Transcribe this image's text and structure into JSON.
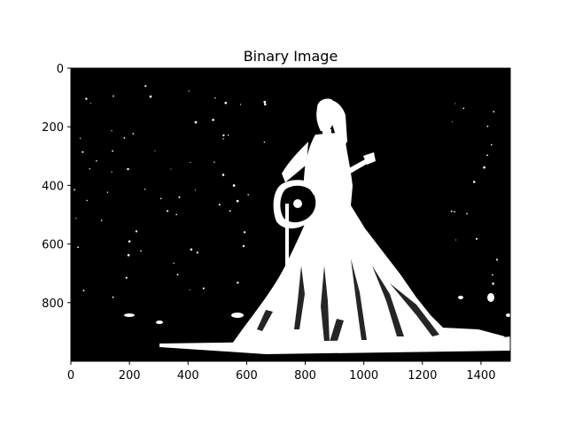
{
  "chart_data": {
    "type": "image",
    "title": "Binary Image",
    "colormap": "gray",
    "image_size": [
      1500,
      1000
    ],
    "xlim": [
      0,
      1500
    ],
    "ylim": [
      1000,
      0
    ],
    "x_ticks": [
      0,
      200,
      400,
      600,
      800,
      1000,
      1200,
      1400
    ],
    "y_ticks": [
      0,
      200,
      400,
      600,
      800
    ],
    "x_tick_labels": [
      "0",
      "200",
      "400",
      "600",
      "800",
      "1000",
      "1200",
      "1400"
    ],
    "y_tick_labels": [
      "0",
      "200",
      "400",
      "600",
      "800"
    ],
    "colors": {
      "background": "#000000",
      "foreground": "#ffffff",
      "axes": "#000000"
    }
  }
}
